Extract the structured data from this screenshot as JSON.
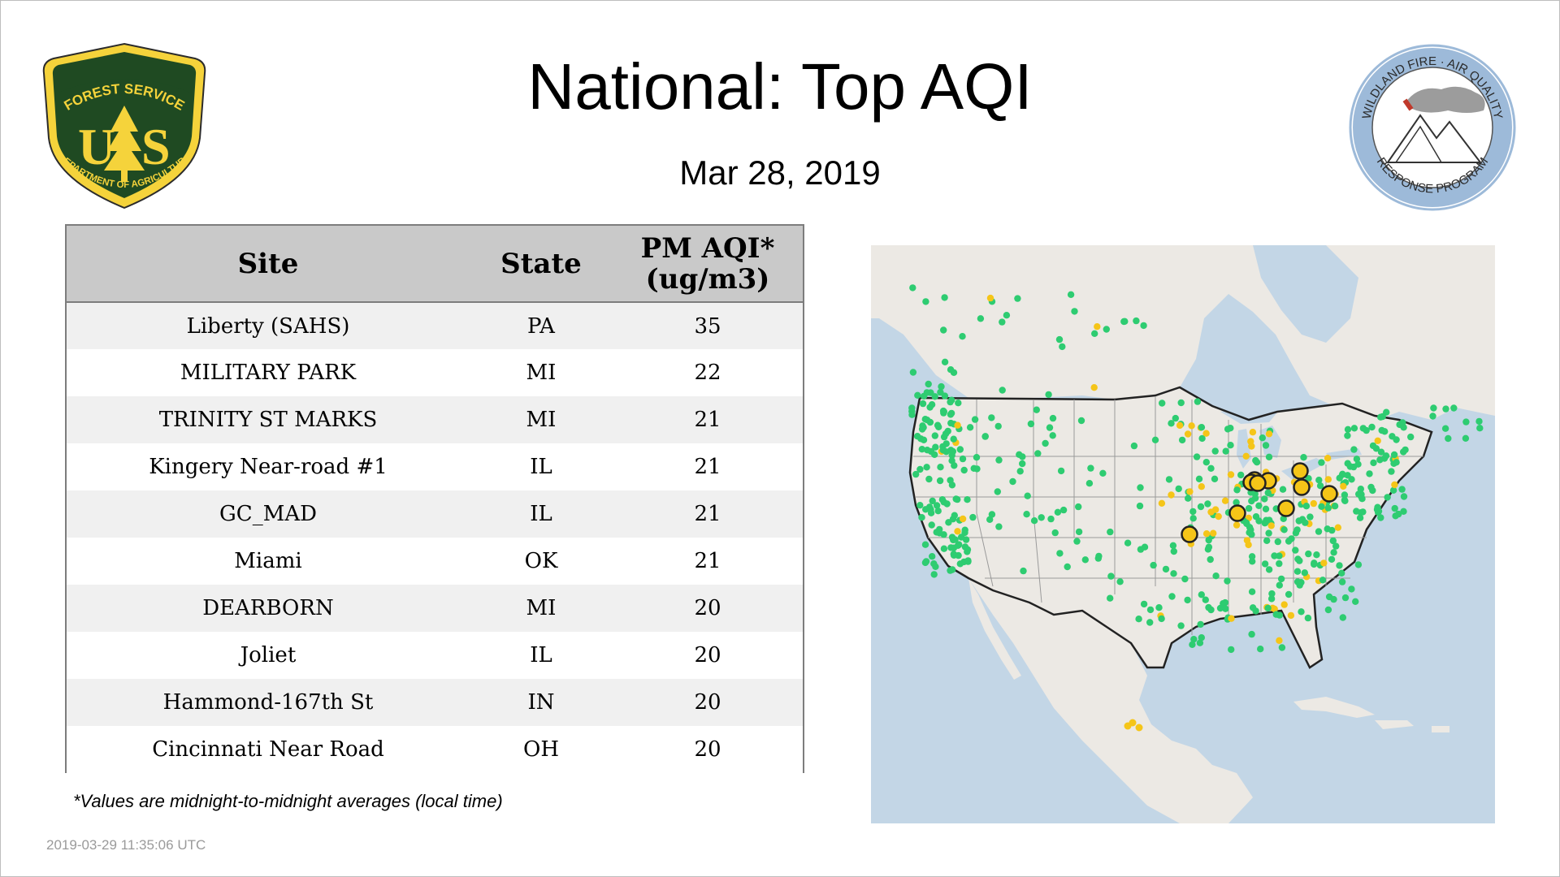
{
  "header": {
    "title": "National: Top AQI",
    "date": "Mar 28, 2019"
  },
  "logos": {
    "usfs": {
      "top_text": "FOREST SERVICE",
      "letters_left": "U",
      "letters_right": "S",
      "bottom_text": "DEPARTMENT OF AGRICULTURE"
    },
    "wfaq": {
      "top_text": "WILDLAND FIRE · AIR QUALITY",
      "bottom_text": "RESPONSE PROGRAM"
    }
  },
  "table": {
    "columns": {
      "site": "Site",
      "state": "State",
      "aqi_line1": "PM AQI*",
      "aqi_line2": "(ug/m3)"
    },
    "rows": [
      {
        "site": "Liberty (SAHS)",
        "state": "PA",
        "aqi": "35"
      },
      {
        "site": "MILITARY PARK",
        "state": "MI",
        "aqi": "22"
      },
      {
        "site": "TRINITY ST MARKS",
        "state": "MI",
        "aqi": "21"
      },
      {
        "site": "Kingery Near-road #1",
        "state": "IL",
        "aqi": "21"
      },
      {
        "site": "GC_MAD",
        "state": "IL",
        "aqi": "21"
      },
      {
        "site": "Miami",
        "state": "OK",
        "aqi": "21"
      },
      {
        "site": "DEARBORN",
        "state": "MI",
        "aqi": "20"
      },
      {
        "site": "Joliet",
        "state": "IL",
        "aqi": "20"
      },
      {
        "site": "Hammond-167th St",
        "state": "IN",
        "aqi": "20"
      },
      {
        "site": "Cincinnati Near Road",
        "state": "OH",
        "aqi": "20"
      }
    ]
  },
  "footnote": "*Values are midnight-to-midnight averages (local time)",
  "timestamp": "2019-03-29 11:35:06 UTC",
  "map": {
    "colors": {
      "good": "#2ecc71",
      "moderate": "#f5c518",
      "highlight_fill": "#f5c518",
      "highlight_stroke": "#222222",
      "land": "#ece9e4",
      "water": "#c3d6e6"
    }
  }
}
